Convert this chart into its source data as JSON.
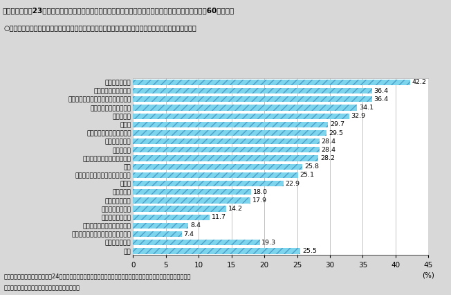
{
  "title": "第２－（２）－23図　　産業別転職経験が２回以上の者が占める割合（役員又は正規の職員・従業員、60歳未満）",
  "subtitle": "○　運輸業，郵便業，不動産業，物品賃貸業などで転職経験が２回以上の者が占める割合が比較的高い。",
  "categories": [
    "運輸業，郵便業",
    "不動産業，物品賃貸業",
    "サービス業（他に分類されないもの）",
    "宿泊業，飲食サービス業",
    "農業，林業",
    "建設業",
    "鉱業，採石業，砂利採取業",
    "卸売業，小売業",
    "医療，福祉",
    "生活関連サービス業，娯楽業",
    "漁業",
    "学術研究，専門・技術サービス業",
    "製造業",
    "情報通信業",
    "金融業，保険業",
    "教育，学習支援業",
    "複合サービス事業",
    "電気・ガス・熱供給・水道業",
    "公務（他に分類されるものを除く）",
    "分類不能の産業",
    "合計"
  ],
  "values": [
    42.2,
    36.4,
    36.4,
    34.1,
    32.9,
    29.7,
    29.5,
    28.4,
    28.4,
    28.2,
    25.8,
    25.1,
    22.9,
    18.0,
    17.9,
    14.2,
    11.7,
    8.4,
    7.4,
    19.3,
    25.5
  ],
  "bar_color": "#7dd4ed",
  "hatch": "///",
  "hatch_color": "#4a9fc8",
  "xlim": [
    0,
    45
  ],
  "xticks": [
    0,
    5,
    10,
    15,
    20,
    25,
    30,
    35,
    40,
    45
  ],
  "xlabel": "45 (%)",
  "footnote1": "資料出所　総務省統計局「平成24年就業構造基本調査」の調査票情報を厚生労働省労働政策担当参事官室にて独自集計",
  "footnote2": "（注）　現職、前職以外が初職である者の割合。",
  "background_color": "#d8d8d8",
  "plot_bg_color": "#ffffff",
  "title_bg_color": "#c8c8c8",
  "fig_width": 6.52,
  "fig_height": 4.26,
  "dpi": 100
}
